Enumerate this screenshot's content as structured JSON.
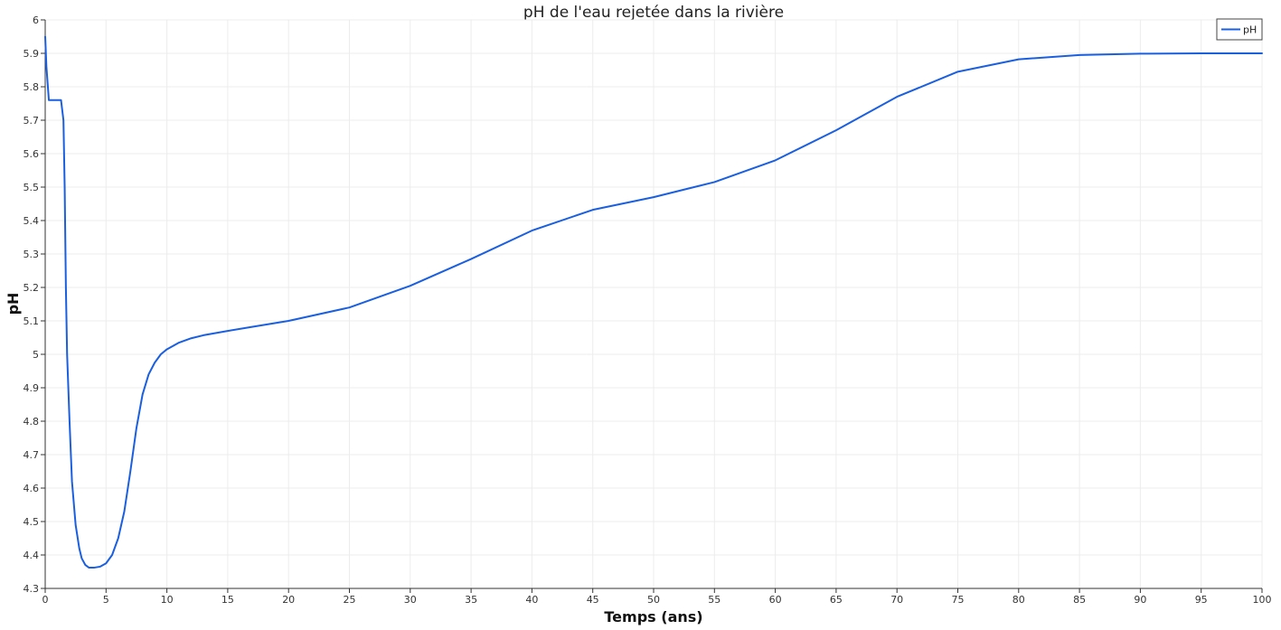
{
  "chart_data": {
    "type": "line",
    "title": "pH de l'eau rejetée dans la rivière",
    "xlabel": "Temps (ans)",
    "ylabel": "pH",
    "xlim": [
      0,
      100
    ],
    "ylim": [
      4.3,
      6
    ],
    "x_ticks": [
      0,
      5,
      10,
      15,
      20,
      25,
      30,
      35,
      40,
      45,
      50,
      55,
      60,
      65,
      70,
      75,
      80,
      85,
      90,
      95,
      100
    ],
    "y_ticks": [
      4.3,
      4.4,
      4.5,
      4.6,
      4.7,
      4.8,
      4.9,
      5,
      5.1,
      5.2,
      5.3,
      5.4,
      5.5,
      5.6,
      5.7,
      5.8,
      5.9,
      6
    ],
    "grid": true,
    "legend": "top-right",
    "series": [
      {
        "name": "pH",
        "color": "#1a5fe0",
        "x": [
          0,
          0.1,
          0.3,
          0.5,
          1.0,
          1.3,
          1.5,
          1.6,
          1.7,
          1.8,
          2.0,
          2.2,
          2.5,
          2.8,
          3.0,
          3.3,
          3.6,
          4.0,
          4.5,
          5.0,
          5.5,
          6.0,
          6.5,
          7.0,
          7.5,
          8.0,
          8.5,
          9.0,
          9.5,
          10,
          11,
          12,
          13,
          15,
          17,
          20,
          25,
          30,
          35,
          40,
          45,
          50,
          55,
          60,
          65,
          70,
          75,
          80,
          85,
          90,
          95,
          100
        ],
        "values": [
          5.95,
          5.86,
          5.76,
          5.76,
          5.76,
          5.76,
          5.7,
          5.5,
          5.2,
          5.0,
          4.8,
          4.62,
          4.49,
          4.42,
          4.39,
          4.37,
          4.362,
          4.362,
          4.365,
          4.375,
          4.4,
          4.45,
          4.53,
          4.65,
          4.78,
          4.88,
          4.94,
          4.975,
          5.0,
          5.015,
          5.035,
          5.048,
          5.057,
          5.07,
          5.082,
          5.1,
          5.14,
          5.205,
          5.285,
          5.37,
          5.432,
          5.47,
          5.515,
          5.58,
          5.67,
          5.77,
          5.845,
          5.882,
          5.895,
          5.899,
          5.9,
          5.9
        ]
      }
    ]
  }
}
